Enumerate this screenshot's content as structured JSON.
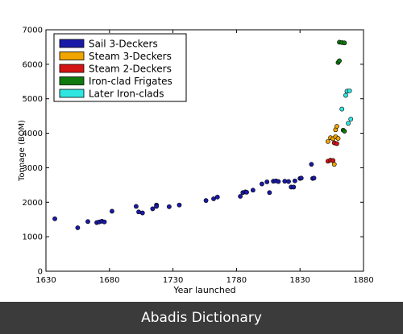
{
  "chart_data": {
    "type": "scatter",
    "title": "",
    "xlabel": "Year launched",
    "ylabel": "Tonnage (BOM)",
    "xlim": [
      1630,
      1880
    ],
    "ylim": [
      0,
      7000
    ],
    "xticks": [
      1630,
      1680,
      1730,
      1780,
      1830,
      1880
    ],
    "yticks": [
      0,
      1000,
      2000,
      3000,
      4000,
      5000,
      6000,
      7000
    ],
    "grid": false,
    "legend_position": "top-left",
    "series": [
      {
        "name": "Sail 3-Deckers",
        "color": "#1a1aa8",
        "points": [
          [
            1637,
            1520
          ],
          [
            1655,
            1260
          ],
          [
            1663,
            1440
          ],
          [
            1670,
            1410
          ],
          [
            1672,
            1430
          ],
          [
            1674,
            1450
          ],
          [
            1676,
            1430
          ],
          [
            1682,
            1740
          ],
          [
            1701,
            1880
          ],
          [
            1703,
            1720
          ],
          [
            1706,
            1690
          ],
          [
            1714,
            1810
          ],
          [
            1717,
            1920
          ],
          [
            1717,
            1880
          ],
          [
            1727,
            1870
          ],
          [
            1735,
            1920
          ],
          [
            1756,
            2050
          ],
          [
            1762,
            2100
          ],
          [
            1765,
            2150
          ],
          [
            1783,
            2170
          ],
          [
            1785,
            2280
          ],
          [
            1787,
            2300
          ],
          [
            1788,
            2290
          ],
          [
            1793,
            2350
          ],
          [
            1800,
            2530
          ],
          [
            1804,
            2590
          ],
          [
            1806,
            2280
          ],
          [
            1809,
            2610
          ],
          [
            1811,
            2620
          ],
          [
            1813,
            2600
          ],
          [
            1818,
            2610
          ],
          [
            1821,
            2600
          ],
          [
            1823,
            2440
          ],
          [
            1825,
            2440
          ],
          [
            1826,
            2620
          ],
          [
            1830,
            2690
          ],
          [
            1831,
            2700
          ],
          [
            1839,
            3100
          ],
          [
            1840,
            2690
          ],
          [
            1841,
            2700
          ]
        ]
      },
      {
        "name": "Steam 3-Deckers",
        "color": "#f0a500",
        "points": [
          [
            1852,
            3760
          ],
          [
            1854,
            3870
          ],
          [
            1856,
            3840
          ],
          [
            1857,
            3100
          ],
          [
            1858,
            3900
          ],
          [
            1858,
            4100
          ],
          [
            1859,
            4200
          ],
          [
            1860,
            3850
          ]
        ]
      },
      {
        "name": "Steam 2-Deckers",
        "color": "#d41414",
        "points": [
          [
            1852,
            3190
          ],
          [
            1854,
            3220
          ],
          [
            1856,
            3210
          ],
          [
            1857,
            3720
          ],
          [
            1859,
            3700
          ]
        ]
      },
      {
        "name": "Iron-clad Frigates",
        "color": "#0f7a0f",
        "points": [
          [
            1860,
            6050
          ],
          [
            1861,
            6100
          ],
          [
            1861,
            6640
          ],
          [
            1863,
            6630
          ],
          [
            1865,
            6620
          ],
          [
            1864,
            4090
          ],
          [
            1865,
            4060
          ]
        ]
      },
      {
        "name": "Later Iron-clads",
        "color": "#2fe6e0",
        "points": [
          [
            1863,
            4700
          ],
          [
            1866,
            5100
          ],
          [
            1867,
            5220
          ],
          [
            1869,
            5230
          ],
          [
            1868,
            4290
          ],
          [
            1870,
            4410
          ]
        ]
      }
    ]
  },
  "footer": {
    "label": "Abadis Dictionary"
  }
}
